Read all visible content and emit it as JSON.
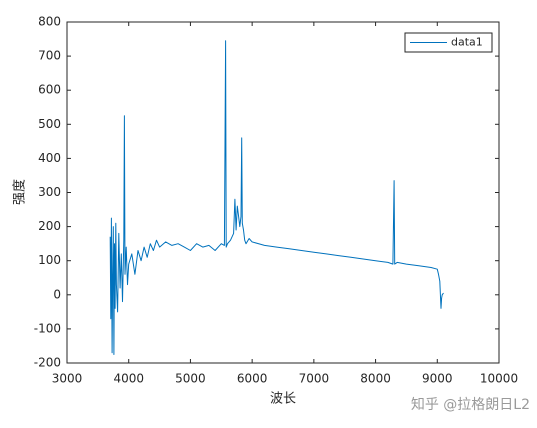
{
  "chart_data": {
    "type": "line",
    "x_label": "波长",
    "y_label": "强度",
    "watermark": "知乎 @拉格朗日L2",
    "x": [
      3700,
      3710,
      3720,
      3730,
      3740,
      3750,
      3760,
      3770,
      3780,
      3790,
      3800,
      3820,
      3840,
      3860,
      3880,
      3900,
      3920,
      3930,
      3940,
      3960,
      3980,
      4000,
      4050,
      4100,
      4150,
      4200,
      4250,
      4300,
      4350,
      4400,
      4450,
      4500,
      4600,
      4700,
      4800,
      4900,
      5000,
      5100,
      5200,
      5300,
      5400,
      5500,
      5550,
      5570,
      5580,
      5600,
      5650,
      5700,
      5720,
      5740,
      5760,
      5780,
      5800,
      5820,
      5830,
      5840,
      5860,
      5880,
      5900,
      5950,
      6000,
      6200,
      6400,
      6600,
      6800,
      7000,
      7200,
      7400,
      7600,
      7800,
      8000,
      8200,
      8280,
      8300,
      8310,
      8350,
      8500,
      8700,
      8900,
      9000,
      9020,
      9040,
      9060,
      9070,
      9080,
      9100
    ],
    "series": [
      {
        "name": "data1",
        "color": "#0072bd",
        "values": [
          170,
          -70,
          225,
          -170,
          60,
          200,
          -175,
          150,
          -40,
          210,
          30,
          -50,
          180,
          20,
          120,
          -20,
          160,
          525,
          60,
          140,
          30,
          90,
          120,
          60,
          130,
          100,
          140,
          110,
          150,
          130,
          160,
          140,
          155,
          145,
          150,
          140,
          130,
          150,
          140,
          145,
          130,
          150,
          145,
          745,
          140,
          150,
          160,
          180,
          280,
          190,
          260,
          230,
          200,
          230,
          460,
          210,
          190,
          160,
          150,
          165,
          155,
          145,
          140,
          135,
          130,
          125,
          120,
          115,
          110,
          105,
          100,
          95,
          90,
          335,
          90,
          95,
          90,
          85,
          80,
          75,
          60,
          40,
          -40,
          -10,
          0,
          5
        ]
      }
    ],
    "xlim": [
      3000,
      10000
    ],
    "xticks": [
      3000,
      4000,
      5000,
      6000,
      7000,
      8000,
      9000,
      10000
    ],
    "ylim": [
      -200,
      800
    ],
    "yticks": [
      -200,
      -100,
      0,
      100,
      200,
      300,
      400,
      500,
      600,
      700,
      800
    ],
    "legend": "upper right",
    "grid": false
  }
}
